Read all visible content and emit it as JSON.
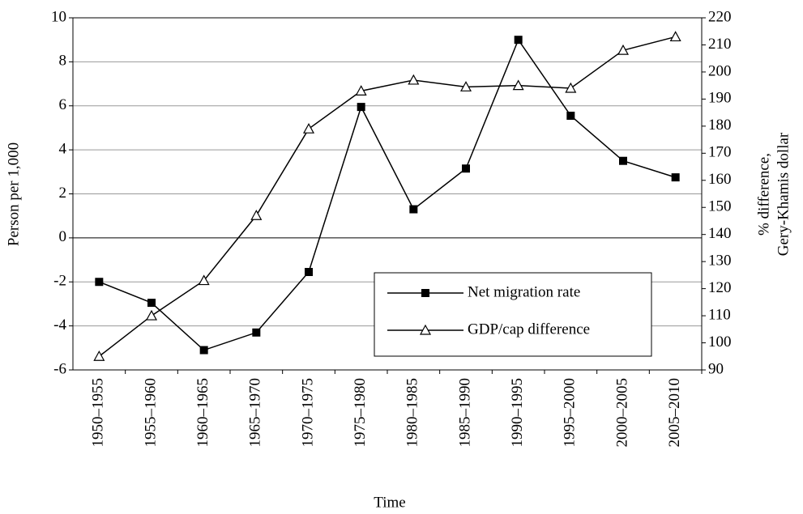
{
  "chart_data": {
    "type": "line",
    "x_label": "Time",
    "y_label": "Person per 1,000",
    "y2_label": [
      "% difference,",
      "Gery-Khamis dollar"
    ],
    "categories": [
      "1950–1955",
      "1955–1960",
      "1960–1965",
      "1965–1970",
      "1970–1975",
      "1975–1980",
      "1980–1985",
      "1985–1990",
      "1990–1995",
      "1995–2000",
      "2000–2005",
      "2005–2010"
    ],
    "series": [
      {
        "name": "Net migration rate",
        "color": "#000000",
        "marker": "square",
        "axis": "y",
        "values": [
          -2.0,
          -2.95,
          -5.1,
          -4.3,
          -1.55,
          5.95,
          1.3,
          3.15,
          9.0,
          5.55,
          3.5,
          2.75
        ]
      },
      {
        "name": "GDP/cap difference",
        "color": "#000000",
        "marker": "triangle",
        "axis": "y2",
        "values": [
          95,
          110,
          123,
          147,
          179,
          193,
          197,
          194.5,
          195,
          194,
          208,
          213
        ]
      }
    ],
    "ylim": [
      -6,
      10
    ],
    "yticks": [
      -6,
      -4,
      -2,
      0,
      2,
      4,
      6,
      8,
      10
    ],
    "y2lim": [
      90,
      220
    ],
    "y2ticks": [
      90,
      100,
      110,
      120,
      130,
      140,
      150,
      160,
      170,
      180,
      190,
      200,
      210,
      220
    ],
    "grid": true,
    "legend": "center right"
  }
}
